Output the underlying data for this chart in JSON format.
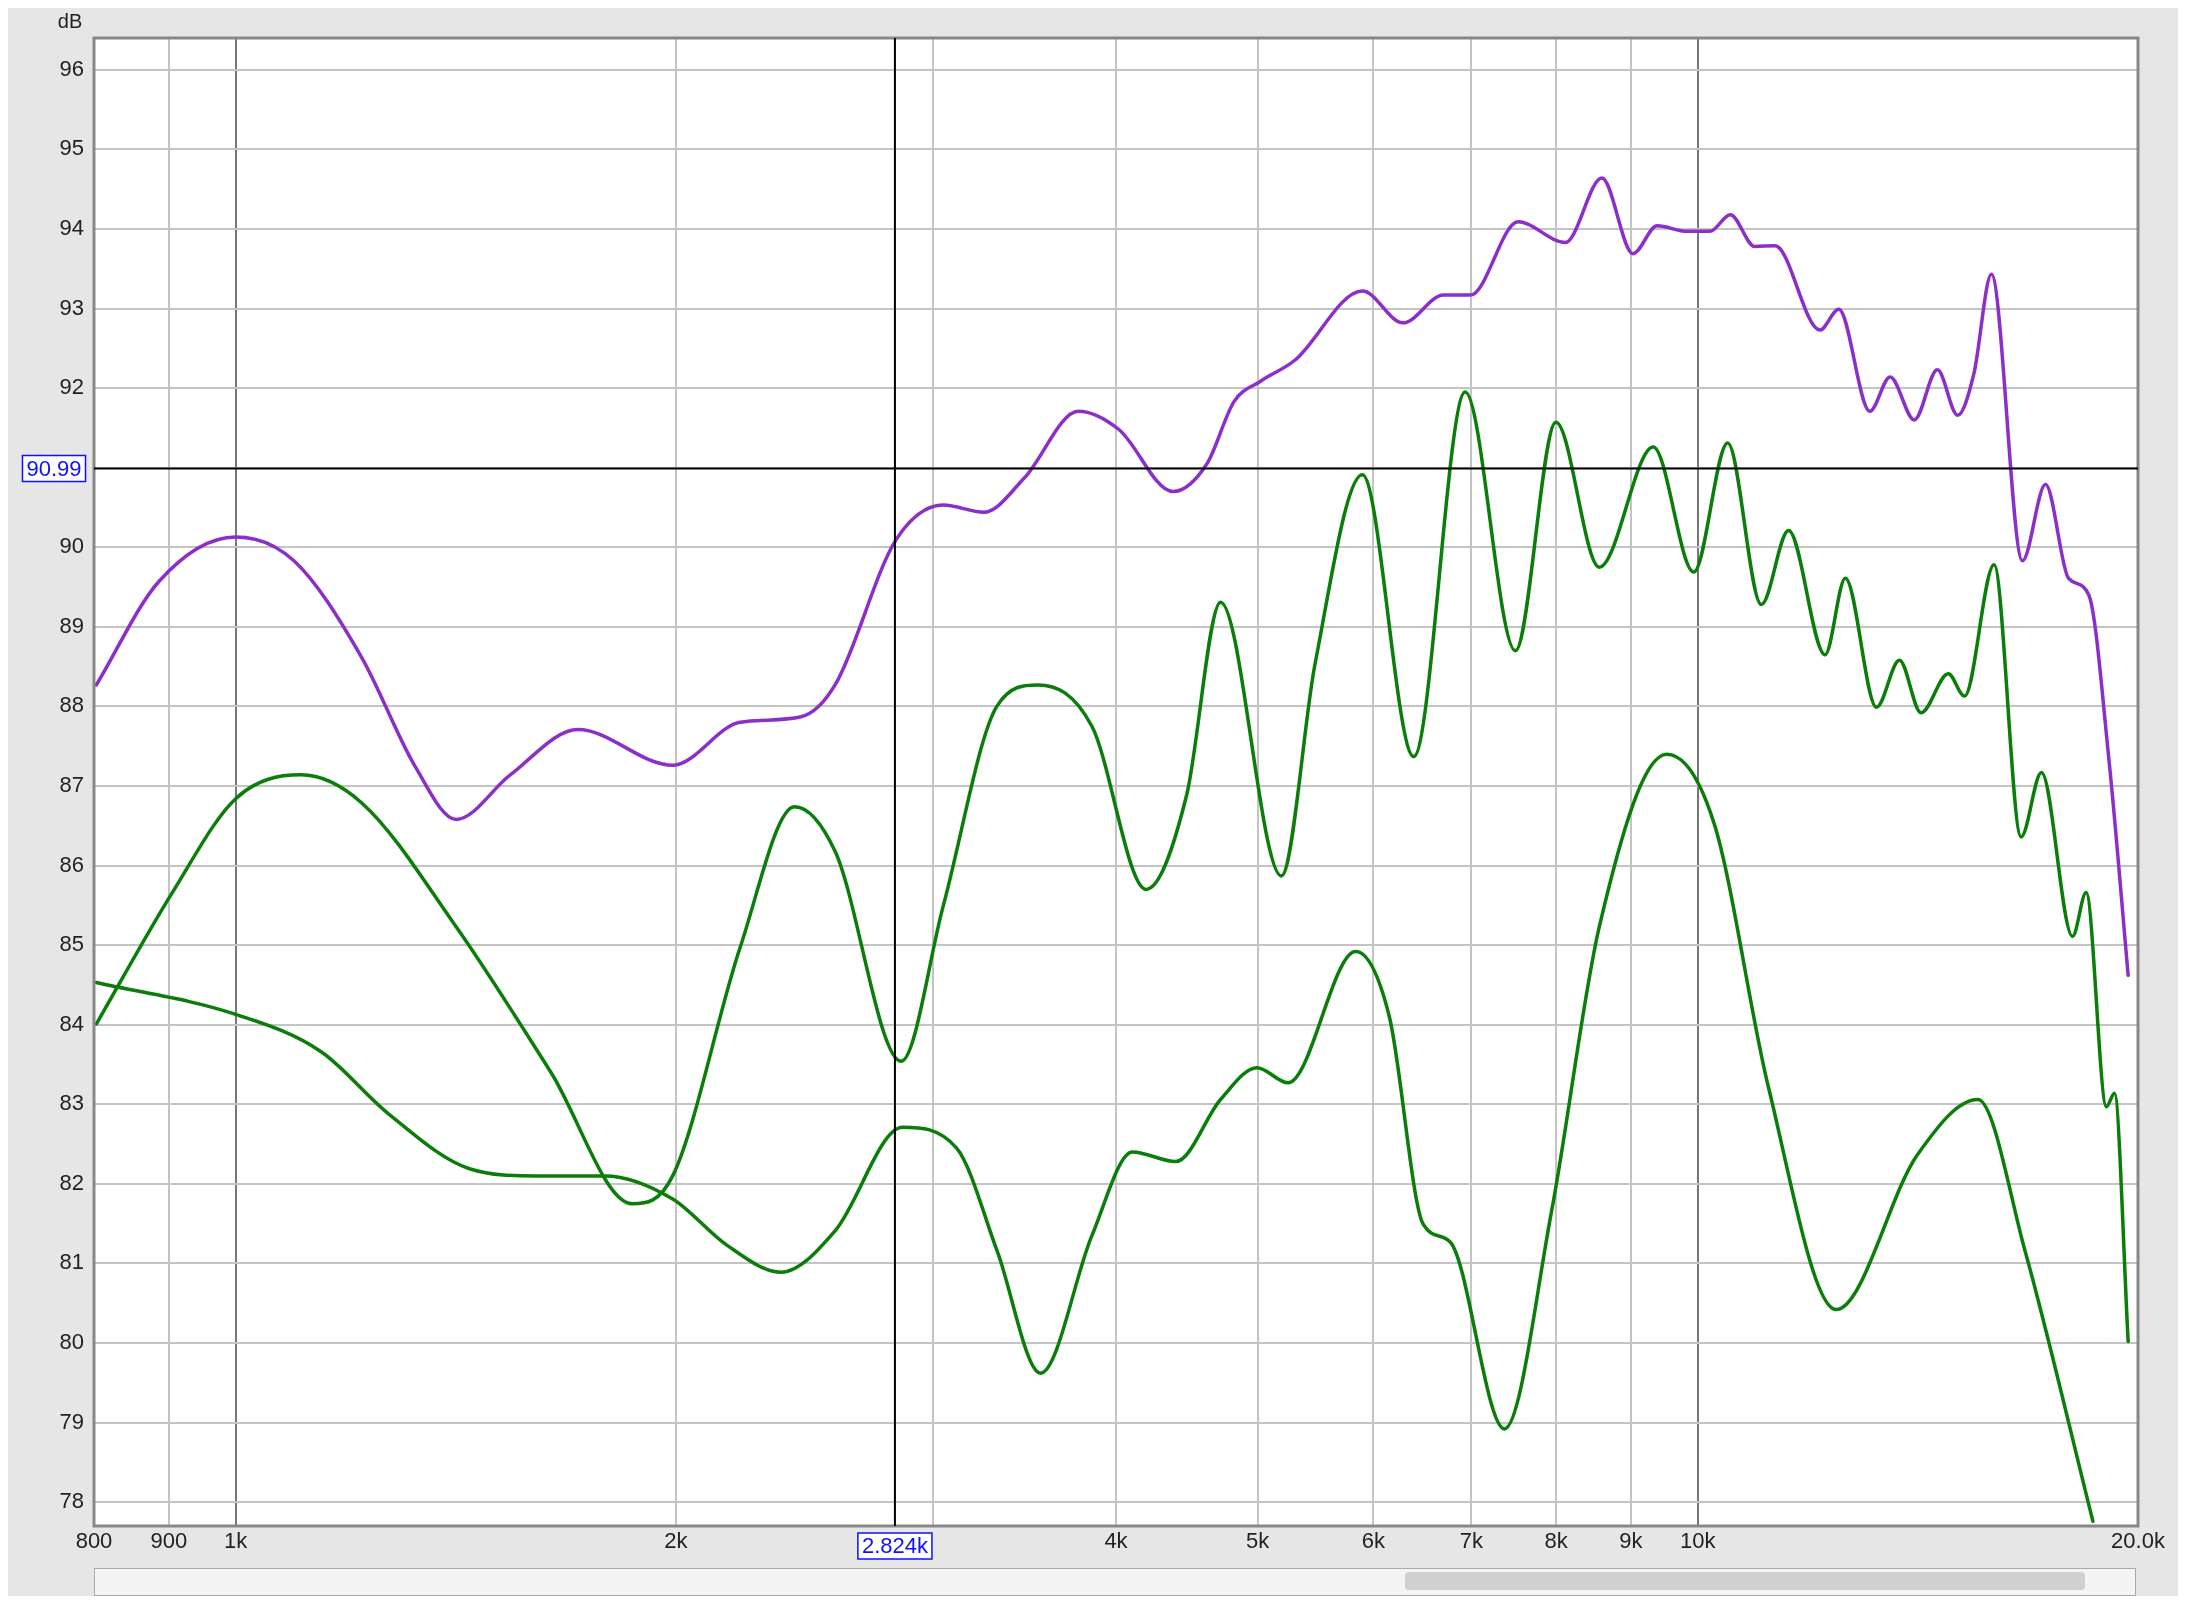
{
  "chart_data": {
    "type": "line",
    "ylabel": "dB",
    "xlim": [
      800,
      20000
    ],
    "ylim": [
      77.7,
      96.4
    ],
    "log": "x",
    "grid": true,
    "legend": false,
    "marker": "none",
    "line_style": "solid",
    "xticks": [
      800,
      900,
      {
        "value": 1000,
        "label": "1k"
      },
      {
        "value": 2000,
        "label": "2k"
      },
      {
        "value": 3000,
        "label": null
      },
      {
        "value": 4000,
        "label": "4k"
      },
      {
        "value": 5000,
        "label": "5k"
      },
      {
        "value": 6000,
        "label": "6k"
      },
      {
        "value": 7000,
        "label": "7k"
      },
      {
        "value": 8000,
        "label": "8k"
      },
      {
        "value": 9000,
        "label": "9k"
      },
      {
        "value": 10000,
        "label": "10k"
      },
      {
        "value": 20000,
        "label": "20.0k"
      }
    ],
    "yticks": [
      78,
      79,
      80,
      81,
      82,
      83,
      84,
      85,
      86,
      87,
      88,
      89,
      90,
      {
        "value": 91,
        "label": null
      },
      92,
      93,
      94,
      95,
      96
    ],
    "ref_lines": [
      {
        "axis": "x",
        "value": 2824,
        "label": "2.824k",
        "color": "#000000"
      },
      {
        "axis": "y",
        "value": 90.99,
        "label": "90.99",
        "color": "#000000"
      }
    ],
    "series": [
      {
        "color": "#8b2fc8",
        "x": [
          803,
          886,
          1000,
          1096,
          1219,
          1328,
          1415,
          1541,
          1714,
          1990,
          2213,
          2436,
          2570,
          2828,
          3047,
          3248,
          3462,
          3770,
          4018,
          4375,
          4616,
          4817,
          5026,
          5301,
          5896,
          6285,
          6699,
          6991,
          7534,
          8116,
          8598,
          9029,
          9380,
          9830,
          10193,
          10524,
          10936,
          11290,
          12118,
          12485,
          13110,
          13537,
          14061,
          14582,
          15054,
          15444,
          15878,
          16672,
          17289,
          17929,
          18509,
          19110,
          19693
        ],
        "values": [
          88.27,
          89.57,
          90.13,
          89.83,
          88.62,
          87.23,
          86.58,
          87.14,
          87.71,
          87.26,
          87.8,
          87.87,
          88.27,
          90.09,
          90.53,
          90.44,
          90.87,
          91.71,
          91.48,
          90.7,
          91.05,
          91.83,
          92.09,
          92.35,
          93.22,
          92.82,
          93.17,
          93.17,
          94.09,
          93.83,
          94.64,
          93.69,
          94.04,
          93.97,
          93.97,
          94.18,
          93.78,
          93.79,
          92.73,
          92.99,
          91.71,
          92.14,
          91.6,
          92.23,
          91.66,
          92.18,
          93.43,
          89.83,
          90.79,
          89.61,
          89.4,
          87.31,
          84.62
        ]
      },
      {
        "color": "#0a7d0a",
        "x": [
          803,
          905,
          1000,
          1108,
          1219,
          1415,
          1643,
          1867,
          1990,
          2213,
          2411,
          2570,
          2852,
          3047,
          3318,
          3537,
          3851,
          4194,
          4470,
          4716,
          5190,
          5472,
          5896,
          6393,
          6932,
          7502,
          7997,
          8562,
          9322,
          9936,
          10481,
          11052,
          11535,
          12218,
          12615,
          13249,
          13736,
          14212,
          14834,
          15219,
          15944,
          16637,
          17179,
          18041,
          18432,
          19030,
          19272,
          19693
        ],
        "values": [
          84.01,
          85.66,
          86.84,
          87.14,
          86.79,
          85.23,
          83.4,
          81.75,
          82.1,
          84.97,
          86.74,
          86.18,
          83.54,
          85.49,
          88.01,
          88.27,
          87.75,
          85.7,
          86.88,
          89.31,
          85.87,
          88.53,
          90.91,
          87.37,
          91.95,
          88.7,
          91.57,
          89.75,
          91.26,
          89.69,
          91.31,
          89.28,
          90.21,
          88.65,
          89.61,
          87.99,
          88.58,
          87.92,
          88.41,
          88.13,
          89.78,
          86.36,
          87.17,
          85.11,
          85.66,
          82.97,
          83.14,
          80.02
        ]
      },
      {
        "color": "#0a7d0a",
        "x": [
          803,
          1000,
          1144,
          1272,
          1445,
          1608,
          1789,
          1990,
          2167,
          2360,
          2570,
          2858,
          3112,
          3318,
          3552,
          3851,
          4105,
          4395,
          4716,
          4994,
          5245,
          5834,
          6152,
          6490,
          6770,
          7375,
          7945,
          8562,
          9522,
          10259,
          11171,
          12432,
          14124,
          15543,
          16745,
          18629
        ],
        "values": [
          84.53,
          84.13,
          83.66,
          82.88,
          82.19,
          82.1,
          82.1,
          81.81,
          81.23,
          80.89,
          81.41,
          82.71,
          82.45,
          81.15,
          79.62,
          81.35,
          82.4,
          82.28,
          83.06,
          83.46,
          83.27,
          84.92,
          84.1,
          81.49,
          81.27,
          78.92,
          81.67,
          85.23,
          87.4,
          86.53,
          83.23,
          80.42,
          82.36,
          83.06,
          81.15,
          77.76
        ]
      }
    ]
  }
}
